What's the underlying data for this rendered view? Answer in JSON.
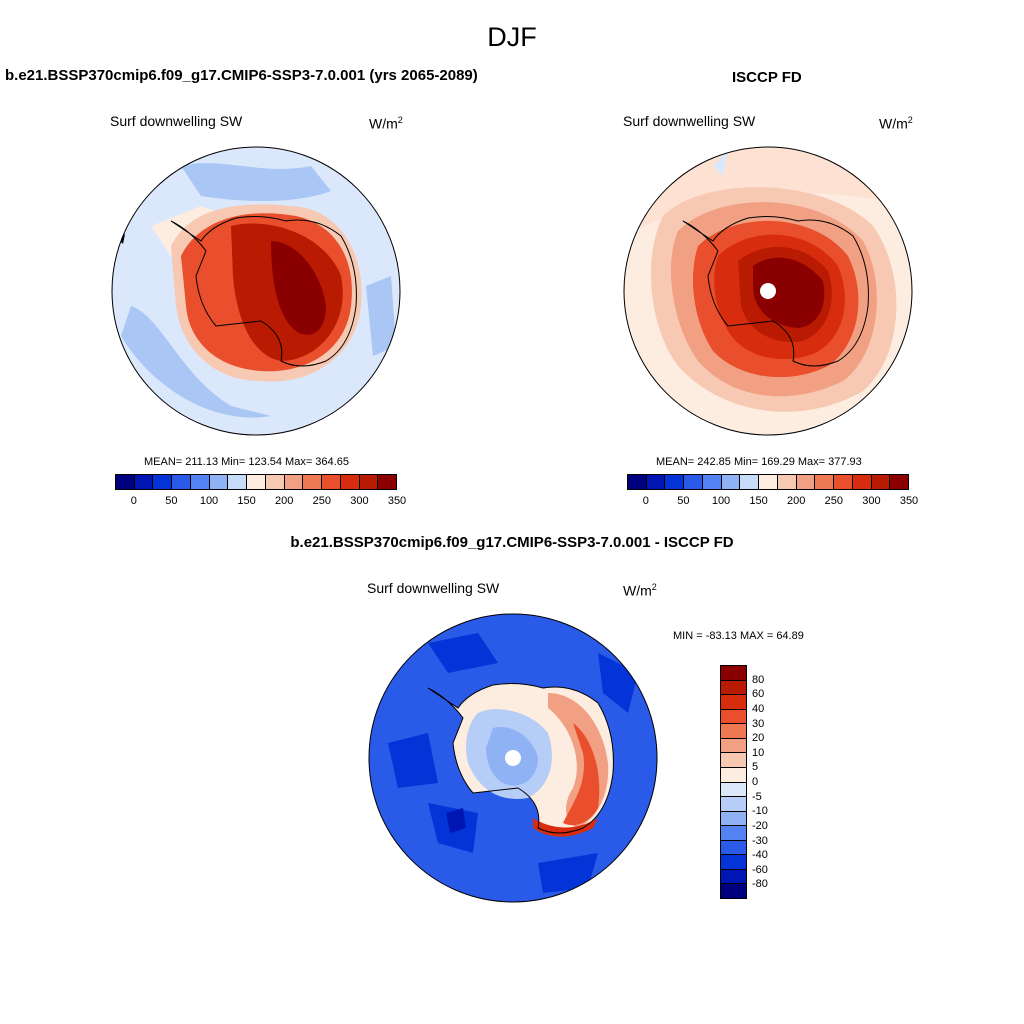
{
  "title": "DJF",
  "panels": {
    "model": {
      "title": "b.e21.BSSP370cmip6.f09_g17.CMIP6-SSP3-7.0.001 (yrs 2065-2089)",
      "variable": "Surf downwelling SW",
      "units": "W/m",
      "units_sup": "2",
      "stats": "MEAN= 211.13  Min= 123.54  Max= 364.65"
    },
    "obs": {
      "title": "ISCCP FD",
      "variable": "Surf downwelling SW",
      "units": "W/m",
      "units_sup": "2",
      "stats": "MEAN= 242.85  Min= 169.29  Max= 377.93"
    },
    "diff": {
      "title": "b.e21.BSSP370cmip6.f09_g17.CMIP6-SSP3-7.0.001 - ISCCP FD",
      "variable": "Surf downwelling SW",
      "units": "W/m",
      "units_sup": "2",
      "stats": "MIN = -83.13 MAX =  64.89"
    }
  },
  "colorbar_abs": {
    "colors": [
      "#00007f",
      "#0016b4",
      "#0433d8",
      "#2a5ae8",
      "#5382f2",
      "#8fb2f5",
      "#c6dcf9",
      "#fdece0",
      "#f7c8b2",
      "#f2a083",
      "#ee7852",
      "#e94f2c",
      "#d72d0e",
      "#b81a02",
      "#8a0000"
    ],
    "ticks": [
      "0",
      "50",
      "100",
      "150",
      "200",
      "250",
      "300",
      "350"
    ]
  },
  "colorbar_diff": {
    "colors": [
      "#8a0000",
      "#b81a02",
      "#d72d0e",
      "#e94f2c",
      "#ee7852",
      "#f2a083",
      "#f7c8b2",
      "#fdece0",
      "#dbe8fb",
      "#b6cdf7",
      "#8fb2f5",
      "#5382f2",
      "#2a5ae8",
      "#0433d8",
      "#0016b4",
      "#00007f"
    ],
    "ticks": [
      "80",
      "60",
      "40",
      "30",
      "20",
      "10",
      "5",
      "0",
      "-5",
      "-10",
      "-20",
      "-30",
      "-40",
      "-60",
      "-80"
    ]
  },
  "map_colors": {
    "ocean_model": "#dbe8fb",
    "ocean_model_blue": "#a9c6f4",
    "ocean_obs": "#fdece0",
    "ocean_obs2": "#f7c8b2",
    "diff_ocean": "#2a5ae8",
    "diff_ocean_dark": "#0433d8",
    "coast": "#000000"
  }
}
